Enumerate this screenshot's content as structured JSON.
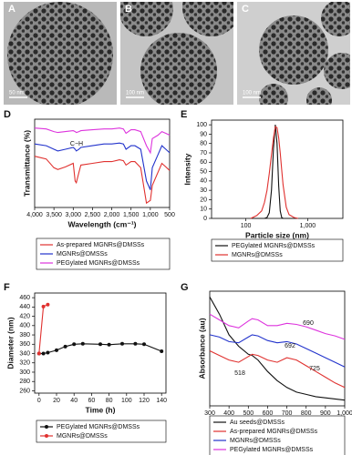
{
  "images": [
    {
      "label": "A",
      "scale_bar": "50 nm"
    },
    {
      "label": "B",
      "scale_bar": "100 nm"
    },
    {
      "label": "C",
      "scale_bar": "100 nm"
    }
  ],
  "chart_data": [
    {
      "type": "line",
      "panel_label": "D",
      "xlabel": "Wavelength (cm⁻¹)",
      "ylabel": "Transmittance (%)",
      "annotations": [
        "C−H"
      ],
      "xlim": [
        4000,
        500
      ],
      "ylim": [
        0,
        100
      ],
      "xticks": [
        {
          "value": 4000,
          "label": "4,000"
        },
        {
          "value": 3500,
          "label": "3,500"
        },
        {
          "value": 3000,
          "label": "3,000"
        },
        {
          "value": 2500,
          "label": "2,500"
        },
        {
          "value": 2000,
          "label": "2,000"
        },
        {
          "value": 1500,
          "label": "1,500"
        },
        {
          "value": 1000,
          "label": "1,000"
        },
        500
      ],
      "x": [
        4000,
        3700,
        3500,
        3400,
        3200,
        3000,
        2950,
        2920,
        2850,
        2800,
        2500,
        2200,
        2000,
        1800,
        1700,
        1630,
        1500,
        1400,
        1250,
        1100,
        1000,
        950,
        800,
        700,
        600,
        500
      ],
      "series": [
        {
          "name": "As-prepared MGNRs@DMSSs",
          "color": "#e0312f",
          "values": [
            58,
            55,
            45,
            43,
            46,
            50,
            30,
            28,
            40,
            48,
            50,
            52,
            52,
            54,
            53,
            48,
            52,
            52,
            45,
            5,
            8,
            25,
            40,
            50,
            46,
            42
          ]
        },
        {
          "name": "MGNRs@DMSSs",
          "color": "#2233cc",
          "values": [
            72,
            70,
            66,
            64,
            66,
            68,
            66,
            64,
            66,
            68,
            70,
            72,
            72,
            73,
            72,
            66,
            70,
            70,
            66,
            30,
            20,
            45,
            60,
            70,
            66,
            62
          ]
        },
        {
          "name": "PEGylated MGNRs@DMSSs",
          "color": "#dd33dd",
          "values": [
            90,
            89,
            86,
            85,
            86,
            87,
            86,
            85,
            86,
            87,
            88,
            89,
            89,
            90,
            89,
            84,
            88,
            88,
            86,
            70,
            62,
            78,
            82,
            86,
            84,
            82
          ]
        }
      ]
    },
    {
      "type": "line",
      "panel_label": "E",
      "xlabel": "Particle size (nm)",
      "ylabel": "Intensity",
      "xlog": true,
      "xlim": [
        28,
        3700
      ],
      "ylim": [
        0,
        105
      ],
      "xticks": [
        100,
        {
          "value": 1000,
          "label": "1,000"
        }
      ],
      "yticks": [
        0,
        10,
        20,
        30,
        40,
        50,
        60,
        70,
        80,
        90,
        100
      ],
      "x": [
        120,
        150,
        180,
        200,
        220,
        240,
        260,
        280,
        300,
        320,
        340,
        360,
        380,
        400,
        450,
        500,
        600,
        700
      ],
      "series": [
        {
          "name": "PEGylated MGNRs@DMSSs",
          "color": "#111111",
          "values": [
            0,
            0,
            0,
            0,
            1,
            6,
            30,
            75,
            100,
            80,
            35,
            8,
            1,
            0,
            0,
            0,
            0,
            0
          ]
        },
        {
          "name": "MGNRs@DMSSs",
          "color": "#e0312f",
          "values": [
            0,
            3,
            8,
            17,
            30,
            48,
            68,
            86,
            98,
            97,
            86,
            70,
            52,
            36,
            12,
            4,
            1,
            0
          ]
        }
      ]
    },
    {
      "type": "line",
      "panel_label": "F",
      "xlabel": "Time (h)",
      "ylabel": "Diameter (nm)",
      "markers": true,
      "xlim": [
        -5,
        145
      ],
      "ylim": [
        255,
        470
      ],
      "xticks": [
        0,
        20,
        40,
        60,
        80,
        100,
        120,
        140
      ],
      "yticks": [
        260,
        280,
        300,
        320,
        340,
        360,
        380,
        400,
        420,
        440,
        460
      ],
      "series": [
        {
          "name": "PEGylated MGNRs@DMSSs",
          "color": "#111111",
          "x": [
            0,
            5,
            10,
            20,
            30,
            40,
            50,
            70,
            80,
            95,
            110,
            120,
            140
          ],
          "values": [
            340,
            340,
            342,
            347,
            355,
            360,
            361,
            360,
            359,
            361,
            361,
            360,
            345
          ]
        },
        {
          "name": "MGNRs@DMSSs",
          "color": "#e0312f",
          "x": [
            0,
            5,
            10
          ],
          "values": [
            340,
            441,
            445
          ]
        }
      ]
    },
    {
      "type": "line",
      "panel_label": "G",
      "xlabel": "Wavelength (nm)",
      "ylabel": "Absorbance (au)",
      "annotations": [
        "690",
        "692",
        "518",
        "725"
      ],
      "xlim": [
        300,
        1000
      ],
      "ylim": [
        0,
        100
      ],
      "xticks": [
        300,
        400,
        500,
        600,
        700,
        800,
        900,
        {
          "value": 1000,
          "label": "1,000"
        }
      ],
      "x": [
        300,
        350,
        400,
        450,
        500,
        520,
        550,
        600,
        650,
        700,
        750,
        800,
        850,
        900,
        950,
        1000
      ],
      "series": [
        {
          "name": "Au seeds@DMSSs",
          "color": "#111111",
          "values": [
            95,
            80,
            62,
            52,
            45,
            44,
            40,
            30,
            22,
            16,
            12,
            10,
            8,
            7,
            6,
            5
          ]
        },
        {
          "name": "As-prepared MGNRs@DMSSs",
          "color": "#e0312f",
          "values": [
            48,
            44,
            40,
            38,
            43,
            45,
            44,
            40,
            38,
            42,
            40,
            35,
            30,
            25,
            20,
            16
          ]
        },
        {
          "name": "MGNRs@DMSSs",
          "color": "#2233cc",
          "values": [
            62,
            60,
            56,
            55,
            60,
            62,
            61,
            57,
            55,
            56,
            54,
            50,
            46,
            42,
            38,
            34
          ]
        },
        {
          "name": "PEGylated MGNRs@DMSSs",
          "color": "#dd33dd",
          "values": [
            80,
            75,
            70,
            68,
            74,
            76,
            75,
            70,
            70,
            72,
            71,
            69,
            66,
            63,
            61,
            58
          ]
        }
      ]
    }
  ]
}
